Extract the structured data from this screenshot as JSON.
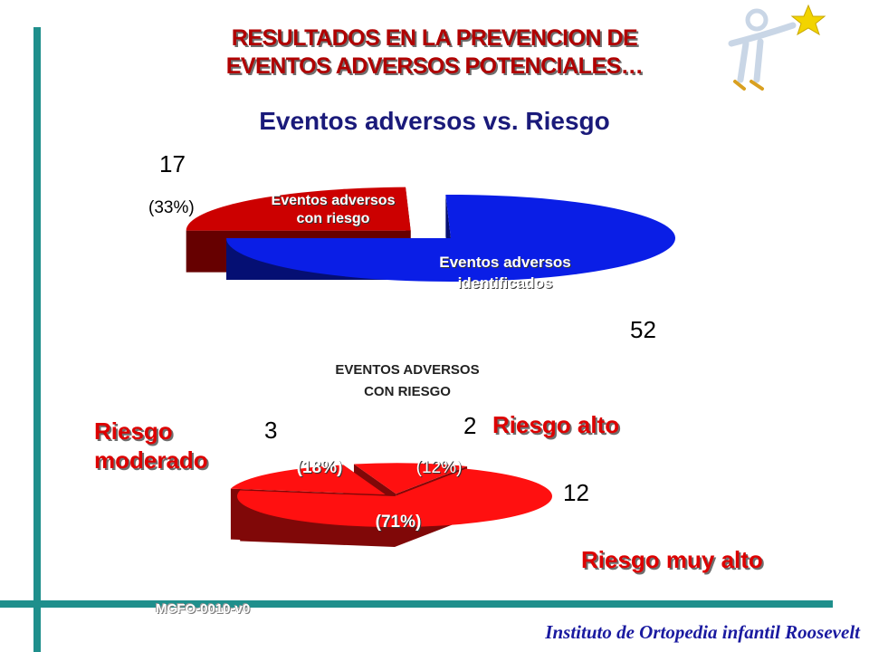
{
  "slide": {
    "title_line1": "RESULTADOS  EN LA PREVENCION DE",
    "title_line2": "EVENTOS ADVERSOS POTENCIALES…",
    "footer_code": "MCFO-0010-v0",
    "footer_institution": "Instituto de Ortopedia infantil Roosevelt"
  },
  "chart_data": [
    {
      "type": "pie",
      "title": "Eventos adversos vs. Riesgo",
      "categories": [
        "Eventos adversos con riesgo",
        "Eventos adversos identificados"
      ],
      "values": [
        17,
        52
      ],
      "percent_labels": [
        "(33%)",
        ""
      ],
      "value_labels": [
        "17",
        "52"
      ],
      "colors": [
        "#cc0000",
        "#0a1ee6"
      ]
    },
    {
      "type": "pie",
      "title_line1": "EVENTOS ADVERSOS",
      "title_line2": "CON RIESGO",
      "categories": [
        "Riesgo moderado",
        "Riesgo alto",
        "Riesgo muy alto"
      ],
      "values": [
        3,
        2,
        12
      ],
      "percent_labels": [
        "(18%)",
        "(12%)",
        "(71%)"
      ],
      "value_labels": [
        "3",
        "2",
        "12"
      ],
      "colors": [
        "#ff1010",
        "#ff1010",
        "#ff1010"
      ]
    }
  ],
  "labels": {
    "pie1_slice1_line1": "Eventos adversos",
    "pie1_slice1_line2": "con riesgo",
    "pie1_slice2_line1": "Eventos adversos",
    "pie1_slice2_line2": "identificados",
    "pie2_cat1_line1": "Riesgo",
    "pie2_cat1_line2": "moderado",
    "pie2_cat2": "Riesgo alto",
    "pie2_cat3": "Riesgo muy alto"
  },
  "logo": {
    "icon": "star-figure-logo",
    "colors": [
      "#f2d400",
      "#3a7fd6"
    ]
  }
}
